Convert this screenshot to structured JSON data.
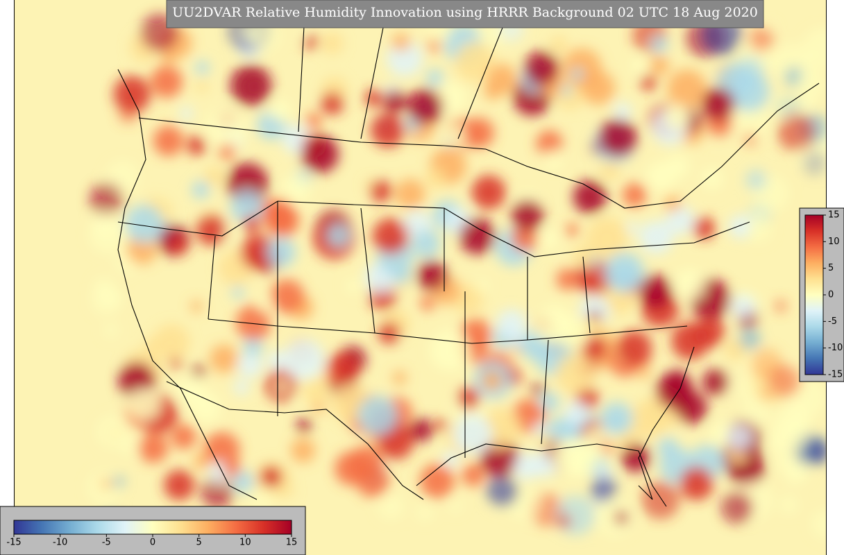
{
  "title": "UU2DVAR Relative Humidity Innovation using HRRR Background 02 UTC 18 Aug 2020",
  "colormap": [
    "#313695",
    "#4575b4",
    "#74add1",
    "#abd9e9",
    "#e0f3f8",
    "#ffffbf",
    "#fee090",
    "#fdae61",
    "#f46d43",
    "#d73027",
    "#a50026"
  ],
  "colorbar_horizontal": {
    "range": [
      -15,
      15
    ],
    "ticks": [
      -15,
      -10,
      -5,
      0,
      5,
      10,
      15
    ]
  },
  "colorbar_vertical": {
    "range": [
      -15,
      15
    ],
    "ticks": [
      15,
      10,
      5,
      0,
      -5,
      -10,
      -15
    ]
  }
}
